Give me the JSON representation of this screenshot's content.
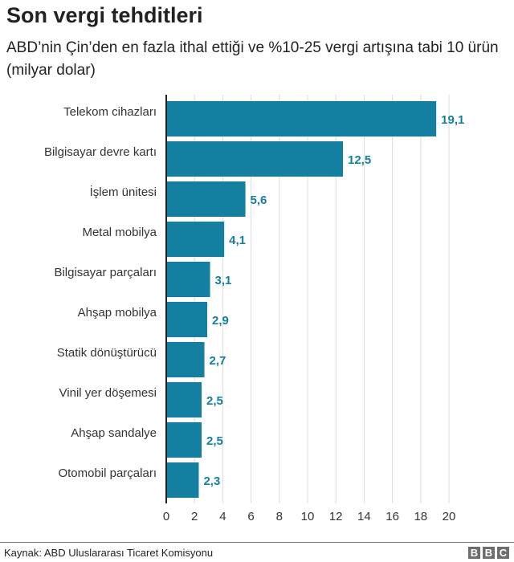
{
  "chart_data": {
    "type": "bar",
    "orientation": "horizontal",
    "title": "Son vergi tehditleri",
    "subtitle": "ABD’nin Çin’den en fazla ithal ettiği ve %10-25 vergi artışına tabi 10 ürün (milyar dolar)",
    "categories": [
      "Telekom cihazları",
      "Bilgisayar devre kartı",
      "İşlem ünitesi",
      "Metal mobilya",
      "Bilgisayar parçaları",
      "Ahşap mobilya",
      "Statik dönüştürücü",
      "Vinil yer döşemesi",
      "Ahşap sandalye",
      "Otomobil parçaları"
    ],
    "values": [
      19.1,
      12.5,
      5.6,
      4.1,
      3.1,
      2.9,
      2.7,
      2.5,
      2.5,
      2.3
    ],
    "data_labels": [
      "19,1",
      "12,5",
      "5,6",
      "4,1",
      "3,1",
      "2,9",
      "2,7",
      "2,5",
      "2,5",
      "2,3"
    ],
    "xticks": [
      0,
      2,
      4,
      6,
      8,
      10,
      12,
      14,
      16,
      18,
      20
    ],
    "xlim": [
      0,
      20
    ],
    "grid": true,
    "bar_color": "#1380A1"
  },
  "footer": {
    "source": "Kaynak: ABD Uluslararası Ticaret Komisyonu",
    "logo": "BBC"
  }
}
